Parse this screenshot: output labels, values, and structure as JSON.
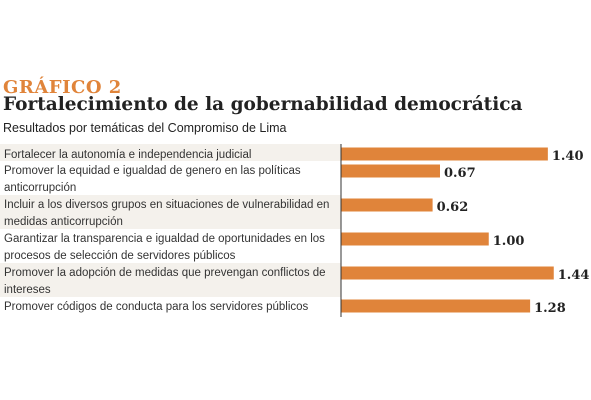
{
  "header": {
    "kicker": "GRÁFICO 2",
    "title": "Fortalecimiento de la gobernabilidad democrática",
    "subtitle": "Resultados por temáticas del Compromiso de Lima"
  },
  "colors": {
    "bar": "#e0843a",
    "row_shade": "#f4f1ec",
    "kicker": "#e0843a",
    "axis": "#333333"
  },
  "chart_data": {
    "type": "bar",
    "orientation": "horizontal",
    "categories": [
      [
        "Fortalecer la autonomía e independencia judicial"
      ],
      [
        "Promover la equidad e igualdad de genero en las políticas",
        "anticorrupción"
      ],
      [
        "Incluir a los diversos grupos en situaciones de vulnerabilidad en",
        "medidas anticorrupción"
      ],
      [
        "Garantizar la transparencia e igualdad de oportunidades en los",
        "procesos de selección de servidores públicos"
      ],
      [
        "Promover la adopción de medidas que prevengan conflictos de",
        "intereses"
      ],
      [
        "Promover códigos de conducta para los servidores públicos"
      ]
    ],
    "values": [
      1.4,
      0.67,
      0.62,
      1.0,
      1.44,
      1.28
    ],
    "value_labels": [
      "1.40",
      "0.67",
      "0.62",
      "1.00",
      "1.44",
      "1.28"
    ],
    "title": "Fortalecimiento de la gobernabilidad democrática",
    "xlabel": "",
    "ylabel": "",
    "xlim": [
      0,
      1.5
    ],
    "grid": false,
    "legend": "none"
  }
}
